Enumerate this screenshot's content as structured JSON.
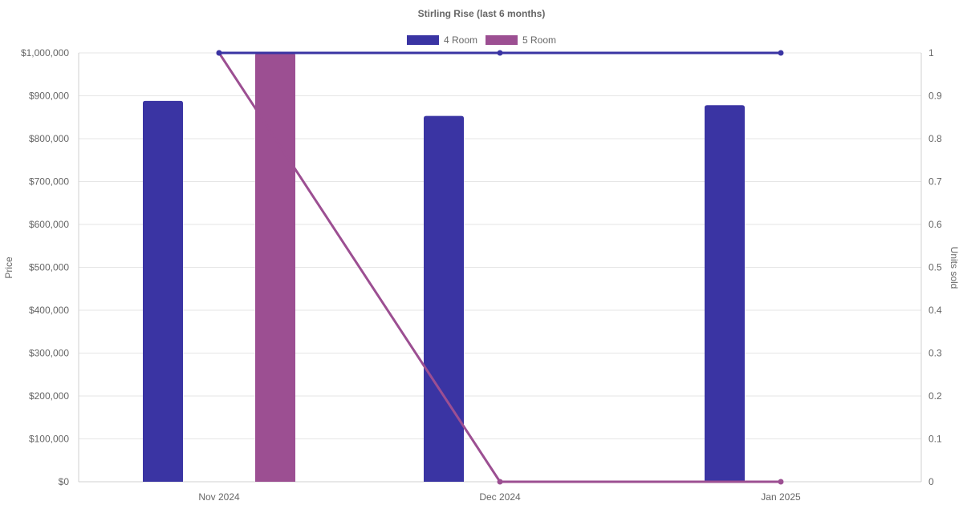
{
  "chart_data": {
    "type": "bar",
    "title": "Stirling Rise (last 6 months)",
    "categories": [
      "Nov 2024",
      "Dec 2024",
      "Jan 2025"
    ],
    "y_left": {
      "label": "Price",
      "range": [
        0,
        1000000
      ],
      "ticks": [
        "$0",
        "$100,000",
        "$200,000",
        "$300,000",
        "$400,000",
        "$500,000",
        "$600,000",
        "$700,000",
        "$800,000",
        "$900,000",
        "$1,000,000"
      ]
    },
    "y_right": {
      "label": "Units sold",
      "range": [
        0,
        1
      ],
      "ticks": [
        "0",
        "0.1",
        "0.2",
        "0.3",
        "0.4",
        "0.5",
        "0.6",
        "0.7",
        "0.8",
        "0.9",
        "1"
      ]
    },
    "series": [
      {
        "name": "4 Room",
        "color": "#3a34a3",
        "price_bars": [
          888000,
          853000,
          878000
        ],
        "units_line": [
          1,
          1,
          1
        ]
      },
      {
        "name": "5 Room",
        "color": "#9c4f92",
        "price_bars": [
          1000000,
          null,
          null
        ],
        "units_line": [
          1,
          0,
          0
        ]
      }
    ],
    "grid": true,
    "legend": "top-center"
  }
}
